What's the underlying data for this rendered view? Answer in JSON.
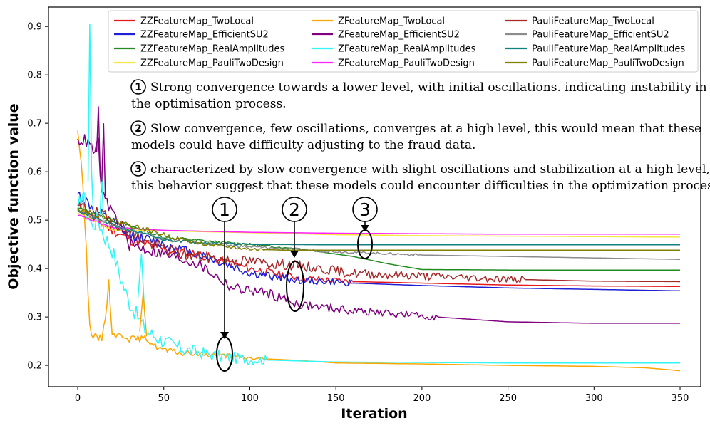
{
  "chart_data": {
    "type": "line",
    "title": "",
    "xlabel": "Iteration",
    "ylabel": "Objective function value",
    "xlim": [
      -17,
      362
    ],
    "ylim": [
      0.156,
      0.94
    ],
    "xticks": [
      0,
      50,
      100,
      150,
      200,
      250,
      300,
      350
    ],
    "yticks": [
      0.2,
      0.3,
      0.4,
      0.5,
      0.6,
      0.7,
      0.8,
      0.9
    ],
    "xtick_labels": [
      "0",
      "50",
      "100",
      "150",
      "200",
      "250",
      "300",
      "350"
    ],
    "ytick_labels": [
      "0.2",
      "0.3",
      "0.4",
      "0.5",
      "0.6",
      "0.7",
      "0.8",
      "0.9"
    ],
    "legend_position": "top-right",
    "series": [
      {
        "name": "ZZFeatureMap_TwoLocal",
        "color": "#e41a1c",
        "start": 0.53,
        "points": [
          [
            10,
            0.5
          ],
          [
            30,
            0.46
          ],
          [
            50,
            0.44
          ],
          [
            70,
            0.43
          ],
          [
            100,
            0.4
          ],
          [
            130,
            0.38
          ],
          [
            160,
            0.373
          ],
          [
            200,
            0.37
          ],
          [
            250,
            0.366
          ],
          [
            300,
            0.364
          ],
          [
            350,
            0.363
          ]
        ],
        "noise": 0.012,
        "noiseEnd": 160,
        "seed": 11
      },
      {
        "name": "ZZFeatureMap_EfficientSU2",
        "color": "#1f1fd6",
        "start": 0.555,
        "points": [
          [
            10,
            0.52
          ],
          [
            30,
            0.47
          ],
          [
            50,
            0.45
          ],
          [
            70,
            0.43
          ],
          [
            100,
            0.39
          ],
          [
            130,
            0.375
          ],
          [
            160,
            0.37
          ],
          [
            200,
            0.365
          ],
          [
            250,
            0.36
          ],
          [
            300,
            0.357
          ],
          [
            350,
            0.354
          ]
        ],
        "noise": 0.013,
        "noiseEnd": 160,
        "seed": 12
      },
      {
        "name": "ZZFeatureMap_RealAmplitudes",
        "color": "#228b22",
        "start": 0.525,
        "points": [
          [
            20,
            0.5
          ],
          [
            50,
            0.465
          ],
          [
            80,
            0.455
          ],
          [
            100,
            0.45
          ],
          [
            130,
            0.44
          ],
          [
            160,
            0.425
          ],
          [
            180,
            0.41
          ],
          [
            200,
            0.398
          ],
          [
            250,
            0.397
          ],
          [
            300,
            0.397
          ],
          [
            350,
            0.397
          ]
        ],
        "noise": 0.004,
        "noiseEnd": 120,
        "seed": 13
      },
      {
        "name": "ZZFeatureMap_PauliTwoDesign",
        "color": "#f5e642",
        "start": 0.515,
        "points": [
          [
            20,
            0.48
          ],
          [
            50,
            0.478
          ],
          [
            100,
            0.474
          ],
          [
            150,
            0.47
          ],
          [
            200,
            0.468
          ],
          [
            250,
            0.467
          ],
          [
            300,
            0.466
          ],
          [
            350,
            0.465
          ]
        ],
        "noise": 0.003,
        "noiseEnd": 30,
        "seed": 14
      },
      {
        "name": "ZFeatureMap_TwoLocal",
        "color": "#ffa500",
        "start": 0.685,
        "points": [
          [
            2,
            0.62
          ],
          [
            5,
            0.45
          ],
          [
            6,
            0.35
          ],
          [
            7,
            0.28
          ],
          [
            9,
            0.26
          ],
          [
            12,
            0.255
          ],
          [
            14,
            0.257
          ],
          [
            16,
            0.3
          ],
          [
            18,
            0.37
          ],
          [
            20,
            0.27
          ],
          [
            22,
            0.262
          ],
          [
            28,
            0.262
          ],
          [
            30,
            0.255
          ],
          [
            35,
            0.255
          ],
          [
            40,
            0.255
          ],
          [
            45,
            0.24
          ],
          [
            50,
            0.232
          ],
          [
            60,
            0.225
          ],
          [
            80,
            0.222
          ],
          [
            100,
            0.215
          ],
          [
            130,
            0.21
          ],
          [
            150,
            0.205
          ],
          [
            200,
            0.203
          ],
          [
            250,
            0.2
          ],
          [
            300,
            0.198
          ],
          [
            330,
            0.195
          ],
          [
            350,
            0.189
          ]
        ],
        "noise": 0.008,
        "noiseEnd": 110,
        "seed": 15
      },
      {
        "name": "ZFeatureMap_EfficientSU2",
        "color": "#800080",
        "start": 0.668,
        "points": [
          [
            5,
            0.663
          ],
          [
            10,
            0.64
          ],
          [
            12,
            0.66
          ],
          [
            14,
            0.55
          ],
          [
            20,
            0.52
          ],
          [
            30,
            0.45
          ],
          [
            50,
            0.43
          ],
          [
            70,
            0.41
          ],
          [
            90,
            0.36
          ],
          [
            110,
            0.35
          ],
          [
            130,
            0.325
          ],
          [
            160,
            0.313
          ],
          [
            200,
            0.302
          ],
          [
            250,
            0.29
          ],
          [
            300,
            0.287
          ],
          [
            350,
            0.287
          ]
        ],
        "noise": 0.014,
        "noiseEnd": 210,
        "seed": 16
      },
      {
        "name": "ZFeatureMap_RealAmplitudes",
        "color": "#33f5f5",
        "start": 0.52,
        "points": [
          [
            3,
            0.56
          ],
          [
            5,
            0.52
          ],
          [
            8,
            0.49
          ],
          [
            12,
            0.5
          ],
          [
            15,
            0.47
          ],
          [
            20,
            0.44
          ],
          [
            25,
            0.38
          ],
          [
            30,
            0.33
          ],
          [
            35,
            0.3
          ],
          [
            40,
            0.27
          ],
          [
            50,
            0.25
          ],
          [
            60,
            0.235
          ],
          [
            80,
            0.22
          ],
          [
            100,
            0.212
          ],
          [
            130,
            0.209
          ],
          [
            150,
            0.207
          ],
          [
            200,
            0.206
          ],
          [
            250,
            0.205
          ],
          [
            300,
            0.205
          ],
          [
            350,
            0.205
          ]
        ],
        "noise": 0.02,
        "noiseEnd": 110,
        "seed": 17
      },
      {
        "name": "ZFeatureMap_PauliTwoDesign",
        "color": "#ff22ff",
        "start": 0.51,
        "points": [
          [
            20,
            0.485
          ],
          [
            50,
            0.479
          ],
          [
            100,
            0.475
          ],
          [
            150,
            0.473
          ],
          [
            200,
            0.472
          ],
          [
            250,
            0.471
          ],
          [
            300,
            0.471
          ],
          [
            350,
            0.471
          ]
        ],
        "noise": 0.003,
        "noiseEnd": 30,
        "seed": 18
      },
      {
        "name": "PauliFeatureMap_TwoLocal",
        "color": "#a52a2a",
        "start": 0.53,
        "points": [
          [
            20,
            0.5
          ],
          [
            40,
            0.455
          ],
          [
            60,
            0.43
          ],
          [
            80,
            0.42
          ],
          [
            100,
            0.415
          ],
          [
            130,
            0.405
          ],
          [
            160,
            0.39
          ],
          [
            200,
            0.385
          ],
          [
            250,
            0.378
          ],
          [
            300,
            0.374
          ],
          [
            350,
            0.373
          ]
        ],
        "noise": 0.014,
        "noiseEnd": 260,
        "seed": 19
      },
      {
        "name": "PauliFeatureMap_EfficientSU2",
        "color": "#8c8c8c",
        "start": 0.52,
        "points": [
          [
            20,
            0.49
          ],
          [
            50,
            0.46
          ],
          [
            80,
            0.45
          ],
          [
            100,
            0.445
          ],
          [
            150,
            0.435
          ],
          [
            200,
            0.428
          ],
          [
            250,
            0.425
          ],
          [
            300,
            0.422
          ],
          [
            350,
            0.419
          ]
        ],
        "noise": 0.004,
        "noiseEnd": 200,
        "seed": 20
      },
      {
        "name": "PauliFeatureMap_RealAmplitudes",
        "color": "#108080",
        "start": 0.52,
        "points": [
          [
            20,
            0.49
          ],
          [
            50,
            0.46
          ],
          [
            80,
            0.452
          ],
          [
            100,
            0.45
          ],
          [
            150,
            0.449
          ],
          [
            200,
            0.449
          ],
          [
            350,
            0.449
          ]
        ],
        "noise": 0.004,
        "noiseEnd": 100,
        "seed": 21
      },
      {
        "name": "PauliFeatureMap_PauliTwoDesign",
        "color": "#808000",
        "start": 0.525,
        "points": [
          [
            20,
            0.5
          ],
          [
            40,
            0.48
          ],
          [
            60,
            0.46
          ],
          [
            80,
            0.447
          ],
          [
            100,
            0.44
          ],
          [
            120,
            0.438
          ],
          [
            150,
            0.438
          ],
          [
            200,
            0.438
          ],
          [
            350,
            0.438
          ]
        ],
        "noise": 0.006,
        "noiseEnd": 110,
        "seed": 22
      }
    ],
    "annotations": [
      {
        "num": "1",
        "text_lines": [
          "Strong convergence towards a lower level, with initial oscillations. indicating instability in",
          "the optimisation process."
        ]
      },
      {
        "num": "2",
        "text_lines": [
          "Slow convergence, few oscillations, converges at a high level, this would mean that these",
          "models could have difficulty adjusting to the fraud data."
        ]
      },
      {
        "num": "3",
        "text_lines": [
          "characterized by slow convergence with slight oscillations and stabilization at a high level,",
          "this behavior suggest that these models could encounter difficulties in the optimization process."
        ]
      }
    ],
    "markers": [
      {
        "label": "1",
        "x": 86,
        "y_label_top": 0.83,
        "y_tip": 0.21
      },
      {
        "label": "2",
        "x": 128,
        "y_label_top": 0.83,
        "y_tip": 0.36
      },
      {
        "label": "3",
        "x": 168,
        "y_label_top": 0.83,
        "y_tip": 0.44
      }
    ]
  }
}
